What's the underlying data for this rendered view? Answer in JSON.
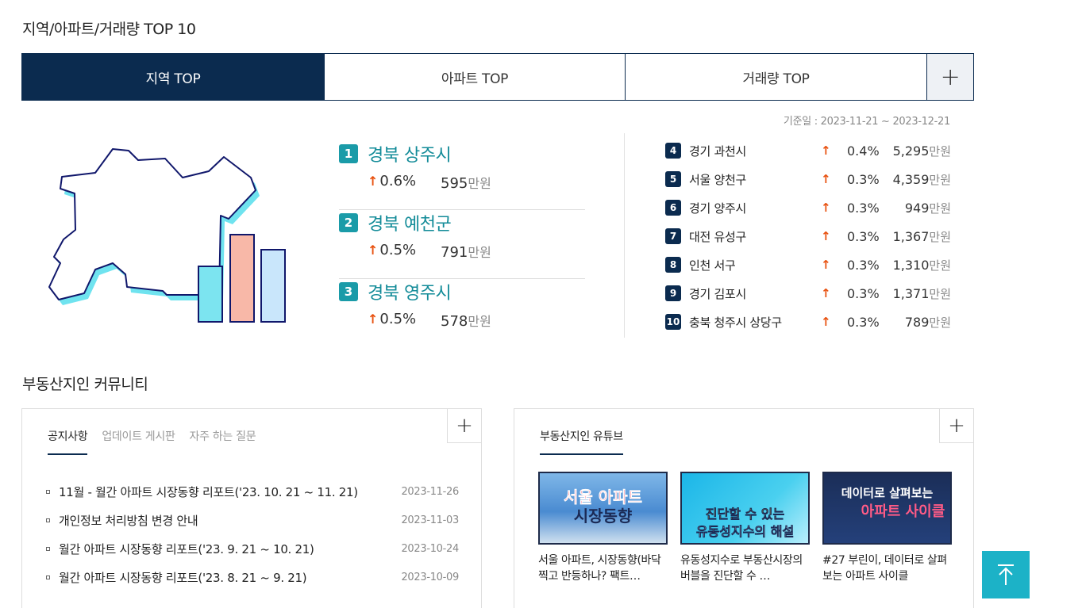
{
  "section1": {
    "title": "지역/아파트/거래량 TOP 10"
  },
  "tabs": [
    {
      "label": "지역 TOP",
      "active": true
    },
    {
      "label": "아파트 TOP",
      "active": false
    },
    {
      "label": "거래량 TOP",
      "active": false
    }
  ],
  "tabs_more_label": "+",
  "base_date": "기준일 : 2023-11-21 ~ 2023-12-21",
  "unit": "만원",
  "top3": [
    {
      "rank": "1",
      "name": "경북 상주시",
      "rate": "0.6%",
      "price": "595"
    },
    {
      "rank": "2",
      "name": "경북 예천군",
      "rate": "0.5%",
      "price": "791"
    },
    {
      "rank": "3",
      "name": "경북 영주시",
      "rate": "0.5%",
      "price": "578"
    }
  ],
  "rest": [
    {
      "rank": "4",
      "name": "경기 과천시",
      "rate": "0.4%",
      "price": "5,295"
    },
    {
      "rank": "5",
      "name": "서울 양천구",
      "rate": "0.3%",
      "price": "4,359"
    },
    {
      "rank": "6",
      "name": "경기 양주시",
      "rate": "0.3%",
      "price": "949"
    },
    {
      "rank": "7",
      "name": "대전 유성구",
      "rate": "0.3%",
      "price": "1,367"
    },
    {
      "rank": "8",
      "name": "인천 서구",
      "rate": "0.3%",
      "price": "1,310"
    },
    {
      "rank": "9",
      "name": "경기 김포시",
      "rate": "0.3%",
      "price": "1,371"
    },
    {
      "rank": "10",
      "name": "충북 청주시 상당구",
      "rate": "0.3%",
      "price": "789"
    }
  ],
  "arrow_up": "↑",
  "section2": {
    "title": "부동산지인 커뮤니티"
  },
  "community": {
    "tabs": [
      {
        "label": "공지사항",
        "active": true
      },
      {
        "label": "업데이트 게시판",
        "active": false
      },
      {
        "label": "자주 하는 질문",
        "active": false
      }
    ],
    "notices": [
      {
        "title": "11월 - 월간 아파트 시장동향 리포트('23. 10. 21 ~ 11. 21)",
        "date": "2023-11-26"
      },
      {
        "title": "개인정보 처리방침 변경 안내",
        "date": "2023-11-03"
      },
      {
        "title": "월간 아파트 시장동향 리포트('23. 9. 21 ~ 10. 21)",
        "date": "2023-10-24"
      },
      {
        "title": "월간 아파트 시장동향 리포트('23. 8. 21 ~ 9. 21)",
        "date": "2023-10-09"
      }
    ]
  },
  "youtube": {
    "tab_label": "부동산지인 유튜브",
    "videos": [
      {
        "thumb_line1": "서울 아파트",
        "thumb_line2": "시장동향",
        "title": "서울 아파트, 시장동향(바닥찍고 반등하나? 팩트…"
      },
      {
        "thumb_line1": "진단할 수 있는",
        "thumb_line2": "유동성지수의 해설",
        "title": "유동성지수로 부동산시장의 버블을 진단할 수 …"
      },
      {
        "thumb_line1": "데이터로 살펴보는",
        "thumb_line2": "아파트 사이클",
        "title": "#27 부린이, 데이터로 살펴보는 아파트 사이클"
      }
    ]
  },
  "colors": {
    "navy": "#0b2b4f",
    "teal": "#1a9ba8",
    "up_arrow": "#e8510f",
    "top_button": "#1cb2c7"
  }
}
